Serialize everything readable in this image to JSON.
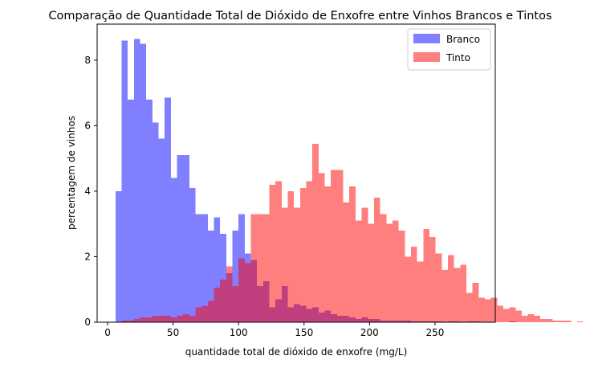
{
  "chart_data": {
    "type": "bar",
    "title": "Comparação de Quantidade Total de Dióxido de Enxofre entre Vinhos Brancos e Tintos",
    "xlabel": "quantidade total de dióxido de enxofre (mg/L)",
    "ylabel": "percentagem de vinhos",
    "xlim": [
      -8,
      296
    ],
    "ylim": [
      0,
      9.1
    ],
    "xticks": [
      0,
      50,
      100,
      150,
      200,
      250
    ],
    "yticks": [
      0,
      2,
      4,
      6,
      8
    ],
    "legend_position": "top-right",
    "grid": false,
    "bin_width": 4.7,
    "series": [
      {
        "name": "Branco",
        "color": "#0000ff",
        "opacity": 0.5,
        "bin_start": 6,
        "values": [
          4.0,
          8.6,
          6.8,
          8.65,
          8.5,
          6.8,
          6.1,
          5.6,
          6.85,
          4.4,
          5.1,
          5.1,
          4.1,
          3.3,
          3.3,
          2.8,
          3.2,
          2.7,
          1.5,
          2.8,
          3.3,
          2.1,
          1.9,
          1.1,
          1.25,
          0.45,
          0.7,
          1.1,
          0.45,
          0.55,
          0.5,
          0.4,
          0.45,
          0.3,
          0.35,
          0.25,
          0.2,
          0.2,
          0.15,
          0.1,
          0.15,
          0.1,
          0.1,
          0.05,
          0.05,
          0.05,
          0.05,
          0.05,
          0.02,
          0.02,
          0.02,
          0.02,
          0.02,
          0.0,
          0.02,
          0.02,
          0.0,
          0.02,
          0.02,
          0.0,
          0.0,
          0.0,
          0.0,
          0.0,
          0.02,
          0.0,
          0.0,
          0.0,
          0.0,
          0.0,
          0.0,
          0.0,
          0.0,
          0.0,
          0.0,
          0.0,
          0.0,
          0.0,
          0.02,
          0.02,
          0.0,
          0.0,
          0.0,
          0.0,
          0.0,
          0.0,
          0.0,
          0.0,
          0.0,
          0.0,
          0.0,
          0.0,
          0.0,
          0.0,
          0.0,
          0.02,
          0.02,
          0.0
        ]
      },
      {
        "name": "Tinto",
        "color": "#ff0000",
        "opacity": 0.5,
        "bin_start": 6,
        "values": [
          0.0,
          0.05,
          0.05,
          0.1,
          0.15,
          0.15,
          0.2,
          0.2,
          0.2,
          0.15,
          0.2,
          0.25,
          0.2,
          0.45,
          0.5,
          0.65,
          1.05,
          1.3,
          1.7,
          1.1,
          1.95,
          1.8,
          3.3,
          3.3,
          3.3,
          4.2,
          4.3,
          3.5,
          4.0,
          3.5,
          4.1,
          4.3,
          5.45,
          4.55,
          4.15,
          4.65,
          4.65,
          3.65,
          4.15,
          3.1,
          3.5,
          3.0,
          3.8,
          3.3,
          3.0,
          3.1,
          2.8,
          2.0,
          2.3,
          1.85,
          2.85,
          2.6,
          2.1,
          1.6,
          2.05,
          1.65,
          1.75,
          0.9,
          1.2,
          0.75,
          0.7,
          0.75,
          0.5,
          0.4,
          0.45,
          0.35,
          0.2,
          0.25,
          0.2,
          0.1,
          0.1,
          0.05,
          0.05,
          0.05,
          0.0,
          0.02,
          0.0,
          0.0,
          0.0,
          0.0,
          0.0,
          0.0,
          0.0,
          0.0,
          0.0,
          0.0,
          0.0,
          0.0,
          0.0,
          0.0,
          0.0,
          0.0,
          0.0,
          0.0,
          0.0,
          0.0,
          0.0,
          0.0
        ]
      }
    ]
  }
}
